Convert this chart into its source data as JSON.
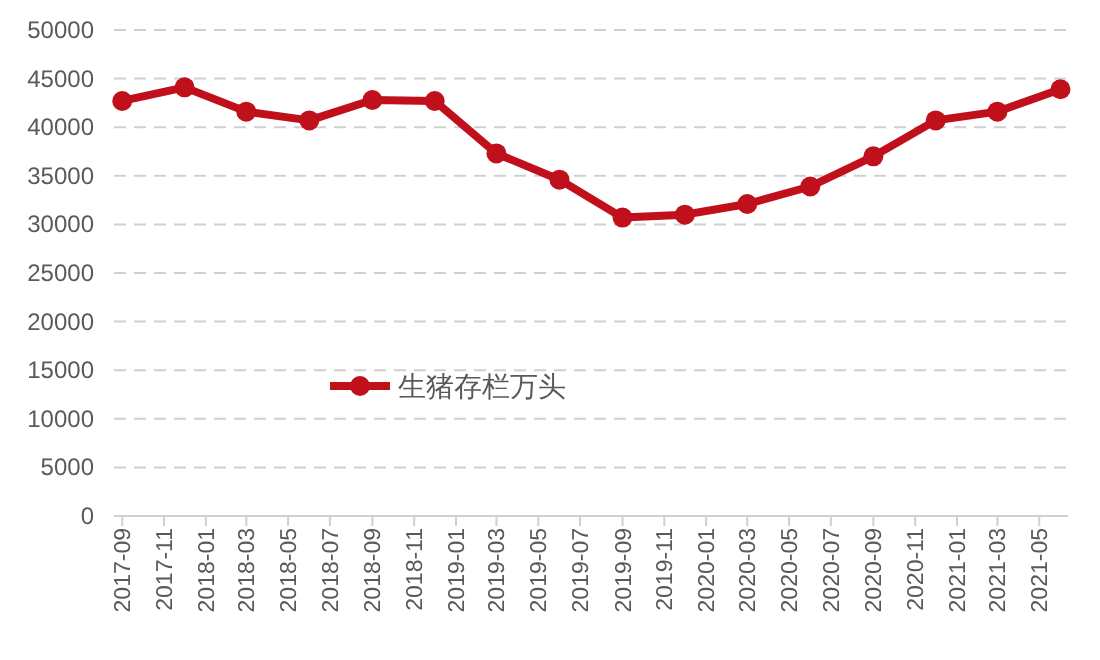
{
  "chart_data": {
    "type": "line",
    "x": [
      "2017-09",
      "2017-12",
      "2018-03",
      "2018-06",
      "2018-09",
      "2018-12",
      "2019-03",
      "2019-06",
      "2019-09",
      "2019-12",
      "2020-03",
      "2020-06",
      "2020-09",
      "2020-12",
      "2021-03",
      "2021-06"
    ],
    "series": [
      {
        "name": "生猪存栏万头",
        "color": "#c0101c",
        "values": [
          42700,
          44100,
          41600,
          40700,
          42800,
          42700,
          37300,
          34600,
          30700,
          31000,
          32100,
          33900,
          37000,
          40700,
          41600,
          43900
        ]
      }
    ],
    "xlim": [
      "2017-08-20",
      "2021-06-12"
    ],
    "xticks": [
      "2017-09",
      "2017-11",
      "2018-01",
      "2018-03",
      "2018-05",
      "2018-07",
      "2018-09",
      "2018-11",
      "2019-01",
      "2019-03",
      "2019-05",
      "2019-07",
      "2019-09",
      "2019-11",
      "2020-01",
      "2020-03",
      "2020-05",
      "2020-07",
      "2020-09",
      "2020-11",
      "2021-01",
      "2021-03",
      "2021-05"
    ],
    "ylim": [
      0,
      50000
    ],
    "yticks": [
      0,
      5000,
      10000,
      15000,
      20000,
      25000,
      30000,
      35000,
      40000,
      45000,
      50000
    ],
    "grid": "y",
    "legend": "left",
    "marker": "circle",
    "line_style": "solid"
  }
}
